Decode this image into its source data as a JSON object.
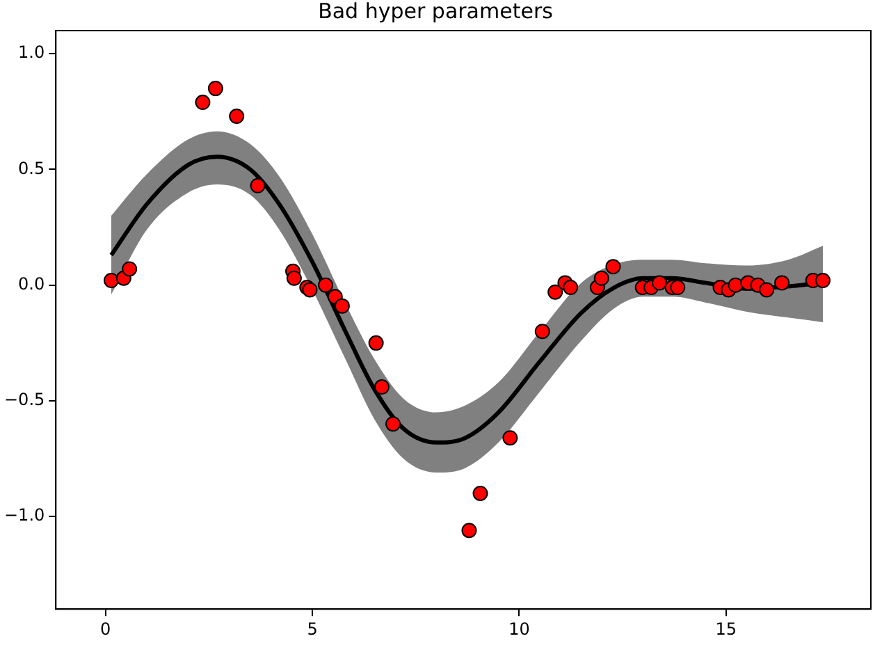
{
  "chart_data": {
    "type": "scatter",
    "title": "Bad hyper parameters",
    "xlim": [
      -1.2,
      18.5
    ],
    "xticks": [
      0,
      5,
      10,
      15
    ],
    "ylim": [
      -1.4,
      1.1
    ],
    "yticks": [
      {
        "value": -1.0,
        "label": "−1.0"
      },
      {
        "value": -0.5,
        "label": "−0.5"
      },
      {
        "value": 0.0,
        "label": "0.0"
      },
      {
        "value": 0.5,
        "label": "0.5"
      },
      {
        "value": 1.0,
        "label": "1.0"
      }
    ],
    "grid": false,
    "legend": false,
    "series": [
      {
        "type": "line",
        "color": "#000000",
        "marker": "none",
        "line_style": "solid",
        "x": [
          0.14,
          1,
          2,
          2.7,
          3.5,
          4.2,
          5,
          5.8,
          6.5,
          7.2,
          8,
          8.7,
          9.5,
          10.5,
          11.5,
          12.3,
          13,
          13.7,
          14.5,
          15.5,
          16.5,
          17.34
        ],
        "values": [
          0.13,
          0.35,
          0.52,
          0.555,
          0.5,
          0.35,
          0.1,
          -0.2,
          -0.45,
          -0.62,
          -0.68,
          -0.66,
          -0.55,
          -0.33,
          -0.12,
          -0.01,
          0.03,
          0.03,
          0.01,
          -0.015,
          -0.005,
          0.01
        ],
        "lower": [
          -0.04,
          0.24,
          0.4,
          0.435,
          0.39,
          0.24,
          -0.02,
          -0.32,
          -0.58,
          -0.75,
          -0.81,
          -0.79,
          -0.68,
          -0.46,
          -0.24,
          -0.1,
          -0.05,
          -0.05,
          -0.075,
          -0.115,
          -0.14,
          -0.16
        ],
        "upper": [
          0.3,
          0.48,
          0.63,
          0.665,
          0.61,
          0.47,
          0.22,
          -0.08,
          -0.32,
          -0.49,
          -0.55,
          -0.52,
          -0.42,
          -0.2,
          0.01,
          0.09,
          0.11,
          0.11,
          0.095,
          0.085,
          0.11,
          0.17
        ]
      },
      {
        "color": "#ff0000",
        "marker": "circle",
        "x": [
          0.14,
          0.44,
          0.58,
          2.35,
          2.66,
          3.17,
          3.68,
          4.53,
          4.56,
          4.87,
          4.94,
          5.32,
          5.55,
          5.72,
          6.54,
          6.68,
          6.95,
          8.79,
          9.06,
          9.78,
          10.56,
          10.87,
          11.11,
          11.24,
          11.89,
          11.99,
          12.27,
          12.98,
          13.19,
          13.39,
          13.7,
          13.83,
          14.86,
          15.06,
          15.23,
          15.53,
          15.77,
          15.98,
          16.35,
          17.1,
          17.34
        ],
        "values": [
          0.02,
          0.03,
          0.07,
          0.79,
          0.85,
          0.73,
          0.43,
          0.06,
          0.03,
          -0.01,
          -0.02,
          0.0,
          -0.05,
          -0.09,
          -0.25,
          -0.44,
          -0.6,
          -1.06,
          -0.9,
          -0.66,
          -0.2,
          -0.03,
          0.01,
          -0.01,
          -0.01,
          0.03,
          0.08,
          -0.01,
          -0.01,
          0.01,
          -0.01,
          -0.01,
          -0.01,
          -0.02,
          0.0,
          0.01,
          0.0,
          -0.02,
          0.01,
          0.02,
          0.02
        ]
      }
    ]
  }
}
